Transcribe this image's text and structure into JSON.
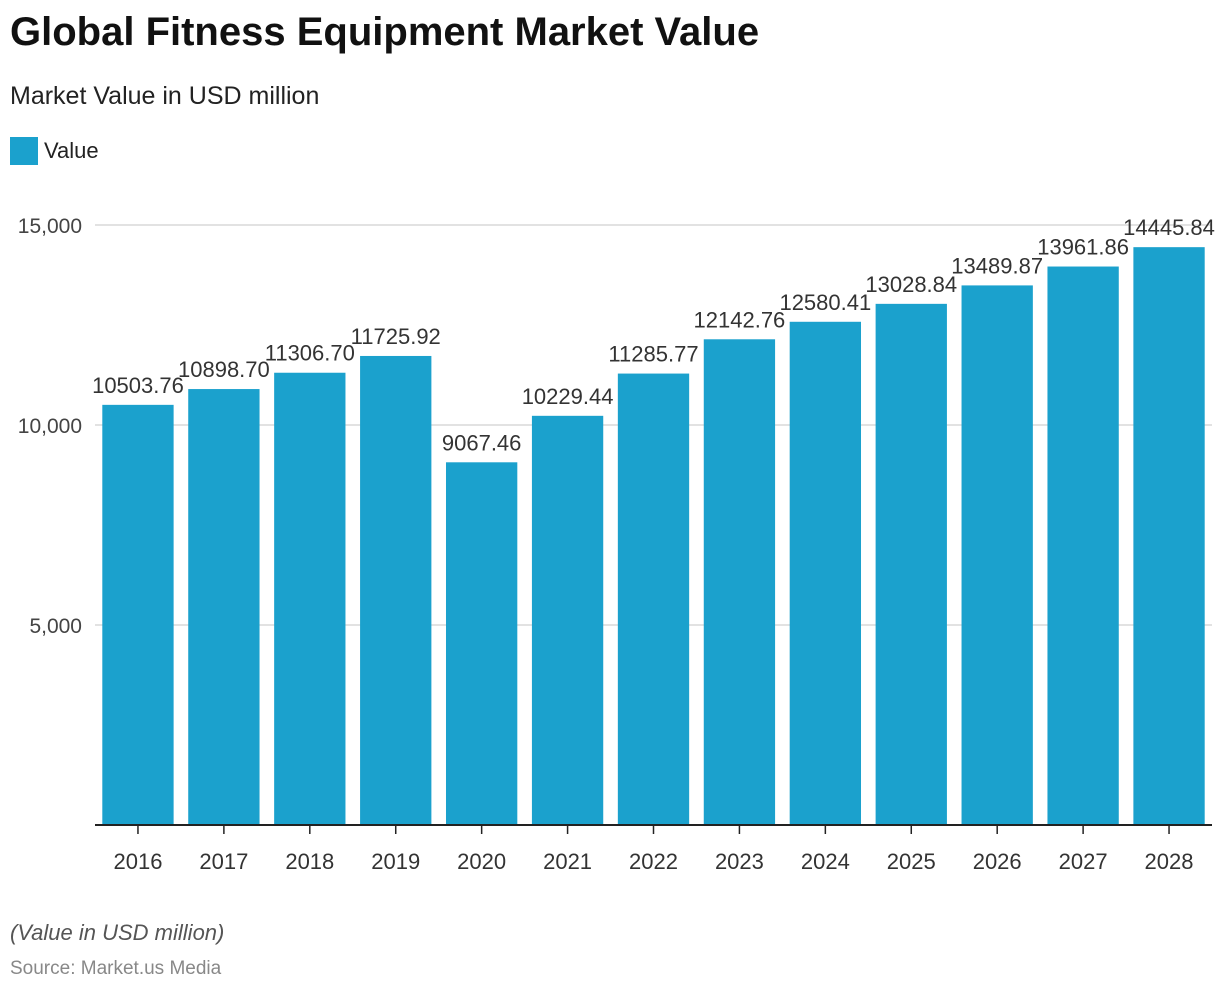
{
  "title": "Global Fitness Equipment Market Value",
  "subtitle": "Market Value in USD million",
  "legend": {
    "label": "Value"
  },
  "colors": {
    "bar": "#1ba1cd",
    "grid": "#d9d9d9",
    "axis": "#222222"
  },
  "footer": {
    "note": "(Value in USD million)",
    "source": "Source: Market.us Media"
  },
  "chart_data": {
    "type": "bar",
    "categories": [
      "2016",
      "2017",
      "2018",
      "2019",
      "2020",
      "2021",
      "2022",
      "2023",
      "2024",
      "2025",
      "2026",
      "2027",
      "2028"
    ],
    "series": [
      {
        "name": "Value",
        "values": [
          10503.76,
          10898.7,
          11306.7,
          11725.92,
          9067.46,
          10229.44,
          11285.77,
          12142.76,
          12580.41,
          13028.84,
          13489.87,
          13961.86,
          14445.84
        ],
        "labels": [
          "10503.76",
          "10898.70",
          "11306.70",
          "11725.92",
          "9067.46",
          "10229.44",
          "11285.77",
          "12142.76",
          "12580.41",
          "13028.84",
          "13489.87",
          "13961.86",
          "14445.84"
        ]
      }
    ],
    "yticks": [
      5000,
      10000,
      15000
    ],
    "ytick_labels": [
      "5,000",
      "10,000",
      "15,000"
    ],
    "ylim": [
      0,
      15000
    ],
    "grid": true,
    "legend_position": "top-left"
  }
}
